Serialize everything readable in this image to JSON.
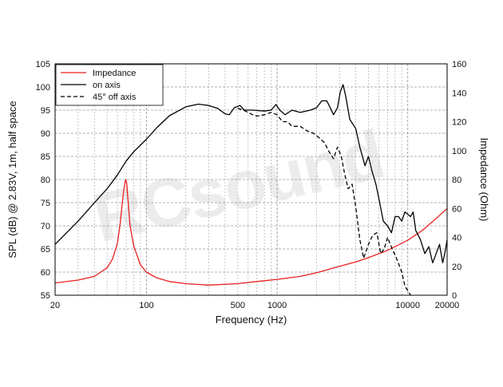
{
  "chart_data": {
    "type": "line",
    "xlabel": "Frequency (Hz)",
    "ylabel": "SPL (dB) @ 2.83V, 1m, half space",
    "y2label": "Impedance (Ohm)",
    "xscale": "log",
    "xlim": [
      20,
      20000
    ],
    "ylim": [
      55,
      105
    ],
    "y2lim": [
      0,
      160
    ],
    "grid": true,
    "legend_position": "top-left",
    "x_tick_labels": [
      "20",
      "100",
      "500",
      "1000",
      "10000",
      "20000"
    ],
    "x_tick_values": [
      20,
      100,
      500,
      1000,
      10000,
      20000
    ],
    "y_ticks": [
      55,
      60,
      65,
      70,
      75,
      80,
      85,
      90,
      95,
      100,
      105
    ],
    "y2_ticks": [
      0,
      20,
      40,
      60,
      80,
      100,
      120,
      140,
      160
    ],
    "watermark": "RCsound",
    "series": [
      {
        "name": "Impedance",
        "axis": "right",
        "color": "#e8201f",
        "dash": "solid",
        "points": [
          [
            20,
            8.5
          ],
          [
            30,
            10.5
          ],
          [
            40,
            13
          ],
          [
            50,
            19
          ],
          [
            55,
            25
          ],
          [
            60,
            36
          ],
          [
            63,
            50
          ],
          [
            65,
            62
          ],
          [
            67,
            72
          ],
          [
            68.5,
            78
          ],
          [
            69.5,
            80
          ],
          [
            70.5,
            78
          ],
          [
            72,
            68
          ],
          [
            75,
            48
          ],
          [
            80,
            34
          ],
          [
            90,
            21
          ],
          [
            100,
            16
          ],
          [
            120,
            12
          ],
          [
            150,
            9.5
          ],
          [
            200,
            8
          ],
          [
            300,
            7
          ],
          [
            500,
            8
          ],
          [
            700,
            9.5
          ],
          [
            1000,
            11
          ],
          [
            1500,
            13
          ],
          [
            2000,
            15.5
          ],
          [
            3000,
            20
          ],
          [
            4000,
            23
          ],
          [
            5000,
            26
          ],
          [
            7000,
            31
          ],
          [
            10000,
            38
          ],
          [
            13000,
            45
          ],
          [
            16000,
            52
          ],
          [
            20000,
            60
          ]
        ]
      },
      {
        "name": "on axis",
        "axis": "left",
        "color": "#000000",
        "dash": "solid",
        "points": [
          [
            20,
            66
          ],
          [
            30,
            71
          ],
          [
            40,
            75
          ],
          [
            50,
            78
          ],
          [
            60,
            81
          ],
          [
            70,
            84
          ],
          [
            80,
            86
          ],
          [
            100,
            88.7
          ],
          [
            120,
            91.2
          ],
          [
            150,
            93.8
          ],
          [
            200,
            95.7
          ],
          [
            250,
            96.3
          ],
          [
            300,
            96
          ],
          [
            350,
            95.4
          ],
          [
            400,
            94.2
          ],
          [
            430,
            94
          ],
          [
            470,
            95.5
          ],
          [
            520,
            96
          ],
          [
            560,
            95
          ],
          [
            650,
            95
          ],
          [
            800,
            94.8
          ],
          [
            900,
            95
          ],
          [
            980,
            96.2
          ],
          [
            1050,
            95
          ],
          [
            1150,
            94
          ],
          [
            1300,
            95
          ],
          [
            1500,
            94.5
          ],
          [
            1800,
            95
          ],
          [
            2000,
            95.5
          ],
          [
            2200,
            97
          ],
          [
            2400,
            97
          ],
          [
            2550,
            95.5
          ],
          [
            2700,
            94
          ],
          [
            2900,
            95.5
          ],
          [
            3050,
            99
          ],
          [
            3200,
            100.5
          ],
          [
            3350,
            98
          ],
          [
            3600,
            93
          ],
          [
            4000,
            91
          ],
          [
            4300,
            87
          ],
          [
            4700,
            83
          ],
          [
            5000,
            85
          ],
          [
            5300,
            82
          ],
          [
            5700,
            79
          ],
          [
            6000,
            76
          ],
          [
            6500,
            71
          ],
          [
            7000,
            70
          ],
          [
            7500,
            68.5
          ],
          [
            8000,
            72
          ],
          [
            8500,
            72
          ],
          [
            9000,
            71
          ],
          [
            9500,
            73
          ],
          [
            10000,
            72.5
          ],
          [
            10500,
            72
          ],
          [
            11000,
            73
          ],
          [
            11500,
            69
          ],
          [
            12500,
            67
          ],
          [
            13500,
            64
          ],
          [
            14500,
            65.5
          ],
          [
            15500,
            62
          ],
          [
            16500,
            64
          ],
          [
            17500,
            66
          ],
          [
            18500,
            62
          ],
          [
            19500,
            65
          ],
          [
            20000,
            67
          ]
        ]
      },
      {
        "name": "45° off axis",
        "axis": "left",
        "color": "#000000",
        "dash": "dashed",
        "points": [
          [
            500,
            95.4
          ],
          [
            550,
            95
          ],
          [
            600,
            94.5
          ],
          [
            650,
            94
          ],
          [
            700,
            93.7
          ],
          [
            800,
            94
          ],
          [
            900,
            94.5
          ],
          [
            1000,
            94
          ],
          [
            1100,
            92.5
          ],
          [
            1200,
            92.5
          ],
          [
            1300,
            91.5
          ],
          [
            1500,
            91.5
          ],
          [
            1700,
            90.5
          ],
          [
            1900,
            90
          ],
          [
            2100,
            89
          ],
          [
            2300,
            88
          ],
          [
            2500,
            86
          ],
          [
            2700,
            84.5
          ],
          [
            2900,
            87
          ],
          [
            3100,
            85
          ],
          [
            3300,
            81
          ],
          [
            3500,
            78
          ],
          [
            3750,
            79
          ],
          [
            4000,
            74
          ],
          [
            4300,
            67
          ],
          [
            4600,
            63
          ],
          [
            5000,
            66
          ],
          [
            5400,
            68
          ],
          [
            5800,
            68.5
          ],
          [
            6200,
            64
          ],
          [
            6600,
            65
          ],
          [
            7000,
            67.5
          ],
          [
            7600,
            65
          ],
          [
            8200,
            63
          ],
          [
            9000,
            60
          ],
          [
            9500,
            57
          ],
          [
            10000,
            56
          ],
          [
            10500,
            55
          ]
        ]
      }
    ]
  }
}
